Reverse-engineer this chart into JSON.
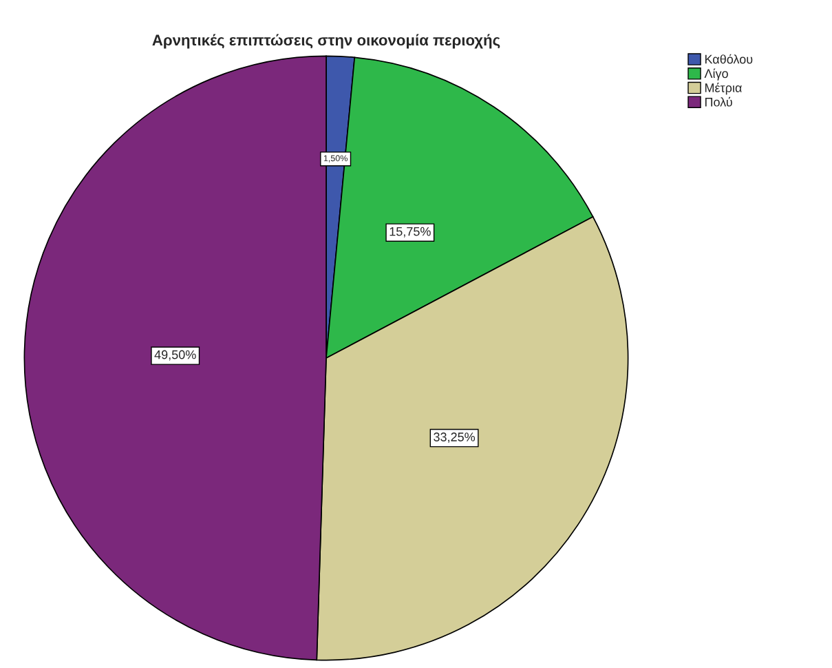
{
  "chart_data": {
    "type": "pie",
    "title": "Αρνητικές επιπτώσεις στην οικονομία περιοχής",
    "categories": [
      "Καθόλου",
      "Λίγο",
      "Μέτρια",
      "Πολύ"
    ],
    "values": [
      1.5,
      15.75,
      33.25,
      49.5
    ],
    "colors": [
      "#3e58ac",
      "#2eb84a",
      "#d4ce98",
      "#7b287b"
    ],
    "value_labels": [
      "1,50%",
      "15,75%",
      "33,25%",
      "49,50%"
    ],
    "legend": "top right"
  }
}
